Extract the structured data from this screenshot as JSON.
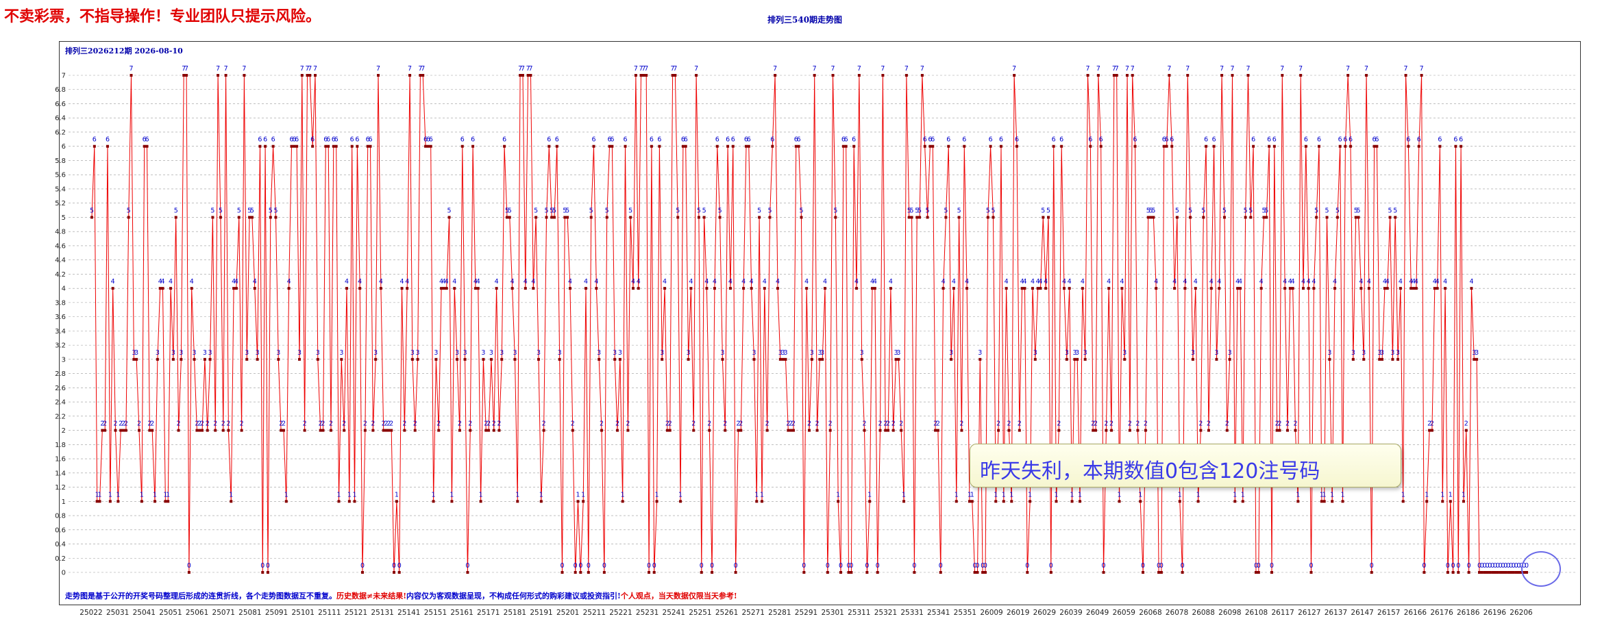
{
  "header": {
    "warning": "不卖彩票，不指导操作！专业团队只提示风险。",
    "title": "排列三540期走势图",
    "period_label": "排列三2026212期 2026-08-10"
  },
  "footer": {
    "part1": "走势图是基于公开的开奖号码整理后形成的连贯折线，各个走势图数据互不重复。",
    "part2": "历史数据≠未来结果!",
    "part3": "内容仅为客观数据呈现，不构成任何形式的购彩建议或投资指引!",
    "part4": "个人观点，当天数据仅限当天参考!"
  },
  "callout": {
    "text": "昨天失利，本期数值0包含120注号码"
  },
  "highlight": {
    "text": "0000"
  },
  "colors": {
    "line": "#ee0000",
    "point": "#880000",
    "label": "#0000cc",
    "grid": "#999999",
    "warning": "#e00000"
  },
  "chart_data": {
    "type": "line",
    "title": "排列三540期走势图",
    "xlabel": "",
    "ylabel": "",
    "ylim": [
      0,
      7
    ],
    "yticks": [
      0,
      0.2,
      0.4,
      0.6,
      0.8,
      1,
      1.2,
      1.4,
      1.6,
      1.8,
      2,
      2.2,
      2.4,
      2.6,
      2.8,
      3,
      3.2,
      3.4,
      3.6,
      3.8,
      4,
      4.2,
      4.4,
      4.6,
      4.8,
      5,
      5.2,
      5.4,
      5.6,
      5.8,
      6,
      6.2,
      6.4,
      6.6,
      6.8,
      7
    ],
    "x_tick_labels": [
      "25022",
      "25031",
      "25041",
      "25051",
      "25061",
      "25071",
      "25081",
      "25091",
      "25101",
      "25111",
      "25121",
      "25131",
      "25141",
      "25151",
      "25161",
      "25171",
      "25181",
      "25191",
      "25201",
      "25211",
      "25221",
      "25231",
      "25241",
      "25251",
      "25261",
      "25271",
      "25281",
      "25291",
      "25301",
      "25311",
      "25321",
      "25331",
      "25341",
      "25351",
      "26009",
      "26019",
      "26029",
      "26039",
      "26049",
      "26059",
      "26068",
      "26078",
      "26088",
      "26098",
      "26108",
      "26117",
      "26127",
      "26137",
      "26147",
      "26157",
      "26166",
      "26176",
      "26186",
      "26196",
      "26206"
    ],
    "grid": true,
    "series": [
      {
        "values": [
          5,
          6,
          1,
          1,
          2,
          2,
          6,
          1,
          4,
          2,
          1,
          2,
          2,
          2,
          5,
          7,
          3,
          3,
          2,
          1,
          6,
          6,
          2,
          2,
          1,
          3,
          4,
          4,
          1,
          1,
          4,
          3,
          5,
          2,
          3,
          7,
          7,
          0,
          4,
          3,
          2,
          2,
          2,
          3,
          2,
          3,
          5,
          2,
          7,
          5,
          2,
          7,
          2,
          1,
          4,
          4,
          5,
          2,
          7,
          3,
          5,
          5,
          4,
          3,
          6,
          0,
          6,
          0,
          5,
          6,
          5,
          3,
          2,
          2,
          1,
          4,
          6,
          6,
          6,
          3,
          7,
          2,
          7,
          7,
          6,
          7,
          3,
          2,
          2,
          6,
          6,
          2,
          6,
          6,
          1,
          3,
          2,
          4,
          1,
          6,
          1,
          6,
          4,
          0,
          2,
          6,
          6,
          2,
          3,
          7,
          4,
          2,
          2,
          2,
          2,
          0,
          1,
          0,
          4,
          2,
          4,
          7,
          3,
          2,
          3,
          7,
          7,
          6,
          6,
          6,
          1,
          3,
          2,
          4,
          4,
          4,
          5,
          1,
          4,
          3,
          2,
          6,
          3,
          0,
          2,
          6,
          4,
          4,
          1,
          3,
          2,
          2,
          3,
          2,
          4,
          2,
          3,
          6,
          5,
          5,
          4,
          3,
          1,
          7,
          7,
          4,
          7,
          7,
          4,
          5,
          3,
          1,
          2,
          5,
          6,
          5,
          5,
          6,
          3,
          0,
          5,
          5,
          4,
          2,
          0,
          1,
          0,
          1,
          4,
          0,
          5,
          6,
          4,
          3,
          2,
          0,
          5,
          6,
          6,
          3,
          2,
          3,
          1,
          6,
          2,
          5,
          4,
          7,
          4,
          7,
          7,
          7,
          0,
          6,
          0,
          1,
          6,
          3,
          4,
          2,
          2,
          7,
          7,
          5,
          1,
          6,
          6,
          3,
          4,
          2,
          7,
          5,
          0,
          5,
          4,
          2,
          0,
          4,
          6,
          5,
          3,
          2,
          6,
          4,
          6,
          0,
          2,
          2,
          4,
          6,
          6,
          4,
          3,
          1,
          5,
          1,
          4,
          2,
          5,
          6,
          7,
          4,
          3,
          3,
          3,
          2,
          2,
          2,
          6,
          6,
          5,
          0,
          4,
          2,
          3,
          7,
          2,
          3,
          3,
          4,
          0,
          2,
          7,
          5,
          1,
          0,
          6,
          6,
          0,
          0,
          6,
          4,
          7,
          3,
          2,
          0,
          1,
          4,
          4,
          0,
          2,
          7,
          2,
          2,
          4,
          2,
          3,
          3,
          2,
          1,
          7,
          5,
          5,
          0,
          5,
          5,
          7,
          6,
          5,
          6,
          6,
          2,
          2,
          0,
          4,
          5,
          6,
          3,
          4,
          1,
          5,
          2,
          6,
          4,
          1,
          1,
          0,
          0,
          3,
          0,
          0,
          5,
          6,
          5,
          1,
          2,
          6,
          1,
          4,
          2,
          1,
          7,
          6,
          2,
          4,
          4,
          0,
          1,
          4,
          3,
          4,
          4,
          5,
          4,
          5,
          0,
          6,
          1,
          2,
          6,
          4,
          3,
          4,
          1,
          3,
          3,
          1,
          4,
          3,
          7,
          6,
          2,
          2,
          7,
          6,
          0,
          2,
          4,
          2,
          7,
          7,
          1,
          4,
          3,
          7,
          2,
          7,
          6,
          2,
          1,
          0,
          2,
          5,
          5,
          5,
          4,
          0,
          0,
          6,
          6,
          7,
          6,
          4,
          5,
          1,
          0,
          4,
          7,
          5,
          3,
          4,
          1,
          2,
          5,
          6,
          2,
          4,
          6,
          3,
          4,
          7,
          5,
          2,
          3,
          7,
          1,
          4,
          4,
          1,
          5,
          7,
          5,
          6,
          0,
          0,
          4,
          5,
          5,
          6,
          0,
          6,
          2,
          2,
          7,
          4,
          2,
          4,
          4,
          2,
          1,
          7,
          4,
          6,
          4,
          0,
          4,
          5,
          6,
          1,
          1,
          5,
          3,
          1,
          4,
          5,
          6,
          1,
          6,
          7,
          6,
          3,
          5,
          5,
          4,
          3,
          7,
          4,
          0,
          6,
          6,
          3,
          3,
          4,
          4,
          5,
          3,
          5,
          3,
          4,
          1,
          7,
          6,
          4,
          4,
          4,
          6,
          7,
          0,
          1,
          2,
          2,
          4,
          4,
          6,
          1,
          4,
          0,
          1,
          0,
          6,
          0,
          6,
          1,
          2,
          0,
          4,
          3,
          3,
          0,
          0,
          0,
          0,
          0,
          0,
          0,
          0,
          0,
          0,
          0,
          0,
          0,
          0,
          0,
          0,
          0,
          0,
          0
        ]
      }
    ]
  }
}
